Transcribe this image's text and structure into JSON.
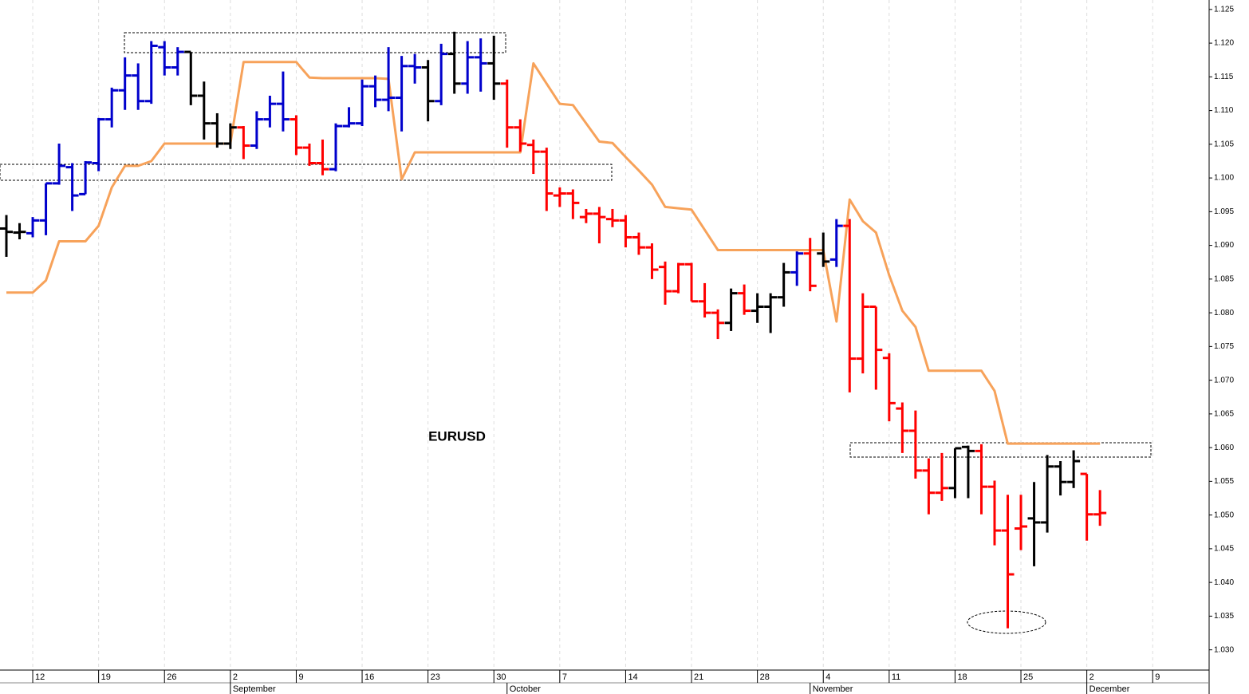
{
  "chart_data": {
    "type": "ohlc",
    "title": "EURUSD",
    "x": [
      "08-08",
      "08-09",
      "08-12",
      "08-13",
      "08-14",
      "08-15",
      "08-16",
      "08-19",
      "08-20",
      "08-21",
      "08-22",
      "08-23",
      "08-26",
      "08-27",
      "08-28",
      "08-29",
      "08-30",
      "09-02",
      "09-03",
      "09-04",
      "09-05",
      "09-06",
      "09-09",
      "09-10",
      "09-11",
      "09-12",
      "09-13",
      "09-16",
      "09-17",
      "09-18",
      "09-19",
      "09-20",
      "09-23",
      "09-24",
      "09-25",
      "09-26",
      "09-27",
      "09-30",
      "10-01",
      "10-02",
      "10-03",
      "10-04",
      "10-07",
      "10-08",
      "10-09",
      "10-10",
      "10-11",
      "10-14",
      "10-15",
      "10-16",
      "10-17",
      "10-18",
      "10-21",
      "10-22",
      "10-23",
      "10-24",
      "10-25",
      "10-28",
      "10-29",
      "10-30",
      "10-31",
      "11-01",
      "11-04",
      "11-05",
      "11-06",
      "11-07",
      "11-08",
      "11-11",
      "11-12",
      "11-13",
      "11-14",
      "11-15",
      "11-18",
      "11-19",
      "11-20",
      "11-21",
      "11-22",
      "11-25",
      "11-26",
      "11-27",
      "11-28",
      "11-29",
      "12-02",
      "12-03",
      "12-04",
      "12-05",
      "12-06",
      "12-09"
    ],
    "open": [
      1.0925,
      1.0919,
      1.0918,
      1.0937,
      1.0992,
      1.1016,
      1.0976,
      1.1022,
      1.1087,
      1.113,
      1.1152,
      1.1114,
      1.1194,
      1.1164,
      1.1187,
      1.1122,
      1.1081,
      1.1051,
      1.1075,
      1.1048,
      1.1087,
      1.111,
      1.1087,
      1.1045,
      1.1022,
      1.1013,
      1.1077,
      1.1081,
      1.1136,
      1.1116,
      1.1119,
      1.1166,
      1.1164,
      1.1114,
      1.1184,
      1.114,
      1.1179,
      1.117,
      1.114,
      1.1075,
      1.1049,
      1.1039,
      1.0974,
      1.0977,
      1.0942,
      1.0947,
      1.0939,
      1.0937,
      1.0912,
      1.0897,
      1.0868,
      1.0832,
      1.0872,
      1.0817,
      1.08,
      1.0785,
      1.0829,
      1.0803,
      1.0809,
      1.0823,
      1.086,
      1.0888,
      1.0888,
      1.0879,
      1.0929,
      1.0732,
      1.0809,
      1.0733,
      1.0658,
      1.0625,
      1.0566,
      1.0533,
      1.054,
      1.0601,
      1.0595,
      1.0542,
      1.0477,
      1.048,
      1.0495,
      1.0489,
      1.0572,
      1.0549,
      1.0561,
      1.0501,
      null,
      null,
      null,
      null
    ],
    "high": [
      1.0945,
      1.0933,
      1.0942,
      1.0992,
      1.1051,
      1.1022,
      1.1025,
      1.1089,
      1.1134,
      1.1179,
      1.117,
      1.1203,
      1.1203,
      1.1194,
      1.1187,
      1.1143,
      1.1096,
      1.1081,
      1.1077,
      1.1099,
      1.1122,
      1.1158,
      1.1093,
      1.1051,
      1.1057,
      1.1081,
      1.1105,
      1.1146,
      1.1152,
      1.1194,
      1.1181,
      1.1184,
      1.1175,
      1.1199,
      1.1217,
      1.1203,
      1.1207,
      1.1211,
      1.1146,
      1.1087,
      1.1057,
      1.1045,
      1.0986,
      1.0983,
      1.0954,
      1.0957,
      1.0954,
      1.0945,
      1.0919,
      1.0903,
      1.0876,
      1.0874,
      1.0874,
      1.0844,
      1.0805,
      1.0836,
      1.0842,
      1.0829,
      1.0829,
      1.0874,
      1.0891,
      1.0911,
      1.0919,
      1.0939,
      1.0939,
      1.0829,
      1.0809,
      1.074,
      1.0667,
      1.0655,
      1.0584,
      1.0592,
      1.0599,
      1.0603,
      1.0605,
      1.0551,
      1.053,
      1.053,
      1.0549,
      1.0589,
      1.058,
      1.0596,
      1.0561,
      1.0537,
      null,
      null,
      null,
      null
    ],
    "low": [
      1.0883,
      1.0909,
      1.0912,
      1.0915,
      1.099,
      1.0951,
      1.0976,
      1.101,
      1.1075,
      1.1101,
      1.1101,
      1.111,
      1.1152,
      1.1152,
      1.1108,
      1.1057,
      1.1045,
      1.1043,
      1.1028,
      1.1043,
      1.1075,
      1.1069,
      1.1034,
      1.1018,
      1.1004,
      1.101,
      1.1075,
      1.1077,
      1.1105,
      1.1099,
      1.1069,
      1.114,
      1.1084,
      1.1108,
      1.1125,
      1.1125,
      1.1128,
      1.1116,
      1.1045,
      1.1039,
      1.1006,
      1.0951,
      1.0957,
      1.0939,
      1.0933,
      1.0903,
      1.0927,
      1.0897,
      1.0886,
      1.085,
      1.0812,
      1.0829,
      1.0817,
      1.0793,
      1.0761,
      1.0773,
      1.0797,
      1.0785,
      1.077,
      1.0809,
      1.084,
      1.0832,
      1.0868,
      1.0868,
      1.0682,
      1.071,
      1.0686,
      1.0639,
      1.0592,
      1.0554,
      1.0501,
      1.0521,
      1.0525,
      1.0525,
      1.0501,
      1.0455,
      1.0332,
      1.0448,
      1.0424,
      1.0474,
      1.0529,
      1.054,
      1.0462,
      1.0484,
      null,
      null,
      null,
      null
    ],
    "close": [
      1.092,
      1.092,
      1.0937,
      1.0992,
      1.1018,
      1.0974,
      1.1023,
      1.1087,
      1.113,
      1.1152,
      1.1114,
      1.1196,
      1.1164,
      1.1187,
      1.1122,
      1.1081,
      1.1051,
      1.1075,
      1.1048,
      1.1087,
      1.111,
      1.1087,
      1.1045,
      1.1022,
      1.1013,
      1.1077,
      1.1081,
      1.1136,
      1.1116,
      1.1119,
      1.1166,
      1.1164,
      1.1114,
      1.1184,
      1.114,
      1.1179,
      1.117,
      1.114,
      1.1075,
      1.1051,
      1.1039,
      1.0977,
      1.0977,
      1.0963,
      1.0947,
      1.0942,
      1.0937,
      1.0912,
      1.0897,
      1.0864,
      1.0832,
      1.0872,
      1.0817,
      1.08,
      1.0785,
      1.0829,
      1.0803,
      1.0809,
      1.0823,
      1.086,
      1.0888,
      1.084,
      1.0876,
      1.0929,
      1.0732,
      1.0809,
      1.0745,
      1.0666,
      1.0625,
      1.0566,
      1.0533,
      1.054,
      1.0599,
      1.0595,
      1.0542,
      1.0477,
      1.0412,
      1.0483,
      1.0489,
      1.0572,
      1.0549,
      1.058,
      1.0501,
      1.0503,
      null,
      null,
      null,
      null
    ],
    "bar_colors": [
      "#000000",
      "#000000",
      "#0000cc",
      "#0000cc",
      "#0000cc",
      "#0000cc",
      "#0000cc",
      "#0000cc",
      "#0000cc",
      "#0000cc",
      "#0000cc",
      "#0000cc",
      "#0000cc",
      "#0000cc",
      "#000000",
      "#000000",
      "#000000",
      "#000000",
      "#ff0000",
      "#0000cc",
      "#0000cc",
      "#0000cc",
      "#ff0000",
      "#ff0000",
      "#ff0000",
      "#0000cc",
      "#0000cc",
      "#0000cc",
      "#0000cc",
      "#0000cc",
      "#0000cc",
      "#0000cc",
      "#000000",
      "#0000cc",
      "#000000",
      "#0000cc",
      "#0000cc",
      "#000000",
      "#ff0000",
      "#ff0000",
      "#ff0000",
      "#ff0000",
      "#ff0000",
      "#ff0000",
      "#ff0000",
      "#ff0000",
      "#ff0000",
      "#ff0000",
      "#ff0000",
      "#ff0000",
      "#ff0000",
      "#ff0000",
      "#ff0000",
      "#ff0000",
      "#ff0000",
      "#000000",
      "#ff0000",
      "#000000",
      "#000000",
      "#000000",
      "#0000cc",
      "#ff0000",
      "#000000",
      "#0000cc",
      "#ff0000",
      "#ff0000",
      "#ff0000",
      "#ff0000",
      "#ff0000",
      "#ff0000",
      "#ff0000",
      "#ff0000",
      "#000000",
      "#000000",
      "#ff0000",
      "#ff0000",
      "#ff0000",
      "#ff0000",
      "#000000",
      "#000000",
      "#000000",
      "#000000",
      "#ff0000",
      "#ff0000",
      null,
      null,
      null,
      null
    ],
    "overlay": {
      "color": "#f7a25a",
      "values": [
        1.083,
        1.083,
        1.083,
        1.0848,
        1.0906,
        1.0906,
        1.0906,
        1.0929,
        1.0986,
        1.1018,
        1.1018,
        1.1025,
        1.1051,
        1.1051,
        1.1051,
        1.1051,
        1.1051,
        1.1051,
        1.1172,
        1.1172,
        1.1172,
        1.1172,
        1.1172,
        1.1149,
        1.1148,
        1.1148,
        1.1148,
        1.1148,
        1.1148,
        1.1147,
        1.0998,
        1.1038,
        1.1038,
        1.1038,
        1.1038,
        1.1038,
        1.1038,
        1.1038,
        1.1038,
        1.1038,
        1.117,
        1.114,
        1.111,
        1.1108,
        1.1081,
        1.1054,
        1.1052,
        1.1031,
        1.1011,
        1.099,
        1.0957,
        1.0955,
        1.0953,
        1.0923,
        1.0893,
        1.0893,
        1.0893,
        1.0893,
        1.0893,
        1.0893,
        1.0893,
        1.0893,
        1.0893,
        1.0787,
        1.0968,
        1.0936,
        1.0919,
        1.0856,
        1.0803,
        1.0779,
        1.0714,
        1.0714,
        1.0714,
        1.0714,
        1.0714,
        1.0684,
        1.0606,
        1.0606,
        1.0606,
        1.0606,
        1.0606,
        1.0606,
        1.0606,
        1.0606,
        null,
        null,
        null,
        null
      ]
    },
    "ylim": [
      1.027,
      1.1264
    ],
    "yticks": [
      {
        "value": 1.03,
        "label": "1.030"
      },
      1.035,
      {
        "value": 1.04,
        "label": "1.040"
      },
      1.045,
      {
        "value": 1.05,
        "label": "1.050"
      },
      1.055,
      {
        "value": 1.06,
        "label": "1.060"
      },
      1.065,
      {
        "value": 1.07,
        "label": "1.070"
      },
      1.075,
      {
        "value": 1.08,
        "label": "1.080"
      },
      1.085,
      {
        "value": 1.09,
        "label": "1.090"
      },
      1.095,
      {
        "value": 1.1,
        "label": "1.100"
      },
      1.105,
      {
        "value": 1.11,
        "label": "1.110"
      },
      1.115,
      {
        "value": 1.12,
        "label": "1.120"
      },
      1.125
    ],
    "xticks": [
      {
        "value": "08-12",
        "label": "12"
      },
      {
        "value": "08-19",
        "label": "19"
      },
      {
        "value": "08-26",
        "label": "26"
      },
      {
        "value": "09-02",
        "label": "2"
      },
      {
        "value": "09-09",
        "label": "9"
      },
      {
        "value": "09-16",
        "label": "16"
      },
      {
        "value": "09-23",
        "label": "23"
      },
      {
        "value": "09-30",
        "label": "30"
      },
      {
        "value": "10-07",
        "label": "7"
      },
      {
        "value": "10-14",
        "label": "14"
      },
      {
        "value": "10-21",
        "label": "21"
      },
      {
        "value": "10-28",
        "label": "28"
      },
      {
        "value": "11-04",
        "label": "4"
      },
      {
        "value": "11-11",
        "label": "11"
      },
      {
        "value": "11-18",
        "label": "18"
      },
      {
        "value": "11-25",
        "label": "25"
      },
      {
        "value": "12-02",
        "label": "2"
      },
      {
        "value": "12-09",
        "label": "9"
      }
    ],
    "month_ticks": [
      {
        "value": "09-02",
        "label": "September"
      },
      {
        "value": "10-01",
        "label": "October"
      },
      {
        "value": "11-01",
        "label": "November"
      },
      {
        "value": "12-02",
        "label": "December"
      }
    ],
    "grid": "x"
  }
}
